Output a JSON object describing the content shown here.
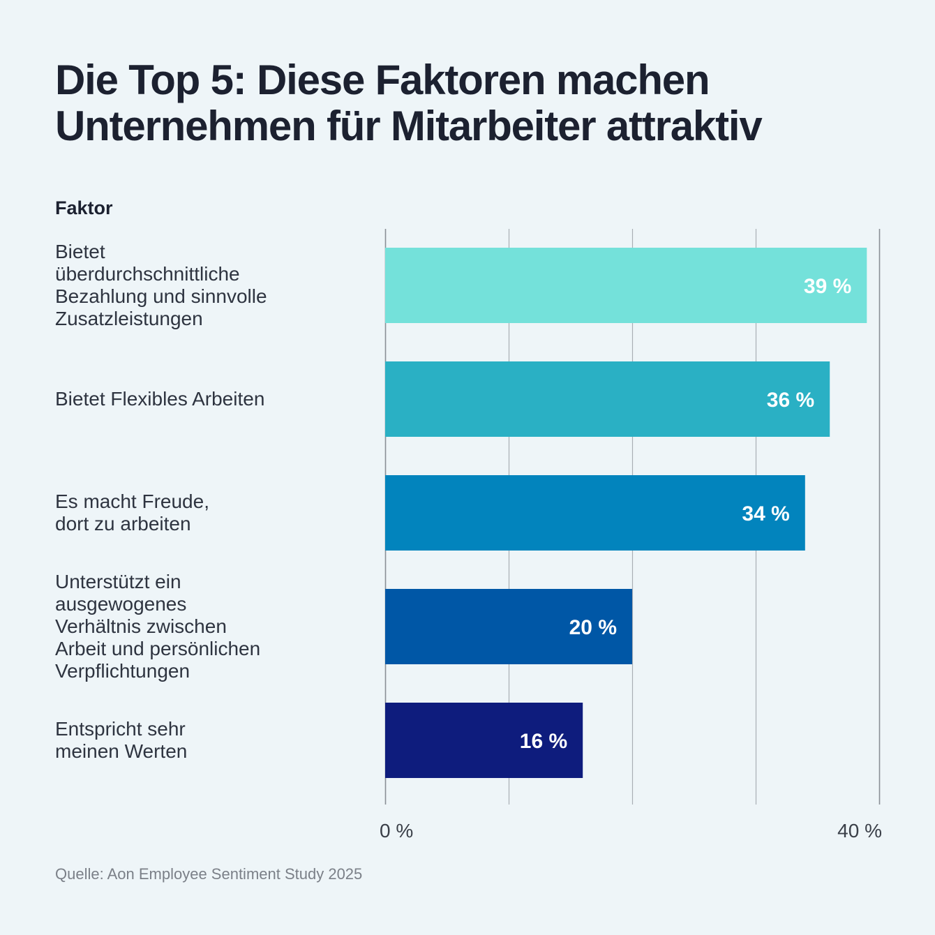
{
  "header": {
    "title": "Die Top 5: Diese Faktoren machen Unternehmen für Mitarbeiter attraktiv",
    "column_heading": "Faktor"
  },
  "footer": {
    "source": "Quelle: Aon Employee Sentiment Study 2025"
  },
  "chart_data": {
    "type": "bar",
    "orientation": "horizontal",
    "title": "Die Top 5: Diese Faktoren machen Unternehmen für Mitarbeiter attraktiv",
    "ylabel": "Faktor",
    "xlabel": "",
    "categories": [
      "Bietet\nüberdurchschnittliche\nBezahlung und sinnvolle\nZusatzleistungen",
      "Bietet Flexibles Arbeiten",
      "Es macht Freude,\ndort zu arbeiten",
      "Unterstützt ein\nausgewogenes\nVerhältnis zwischen\nArbeit und persönlichen\nVerpflichtungen",
      "Entspricht sehr\nmeinen Werten"
    ],
    "values": [
      39,
      36,
      34,
      20,
      16
    ],
    "value_labels": [
      "39 %",
      "36 %",
      "34 %",
      "20 %",
      "16 %"
    ],
    "colors": [
      "#74e1da",
      "#2ab0c4",
      "#0284bd",
      "#0057a6",
      "#0e1c7d"
    ],
    "xlim": [
      0,
      40
    ],
    "gridlines": [
      0,
      10,
      20,
      30,
      40
    ],
    "x_tick_labels": [
      {
        "value": 0,
        "label": "0 %"
      },
      {
        "value": 40,
        "label": "40 %"
      }
    ],
    "grid": true,
    "legend": "none",
    "source": "Quelle: Aon Employee Sentiment Study 2025"
  }
}
